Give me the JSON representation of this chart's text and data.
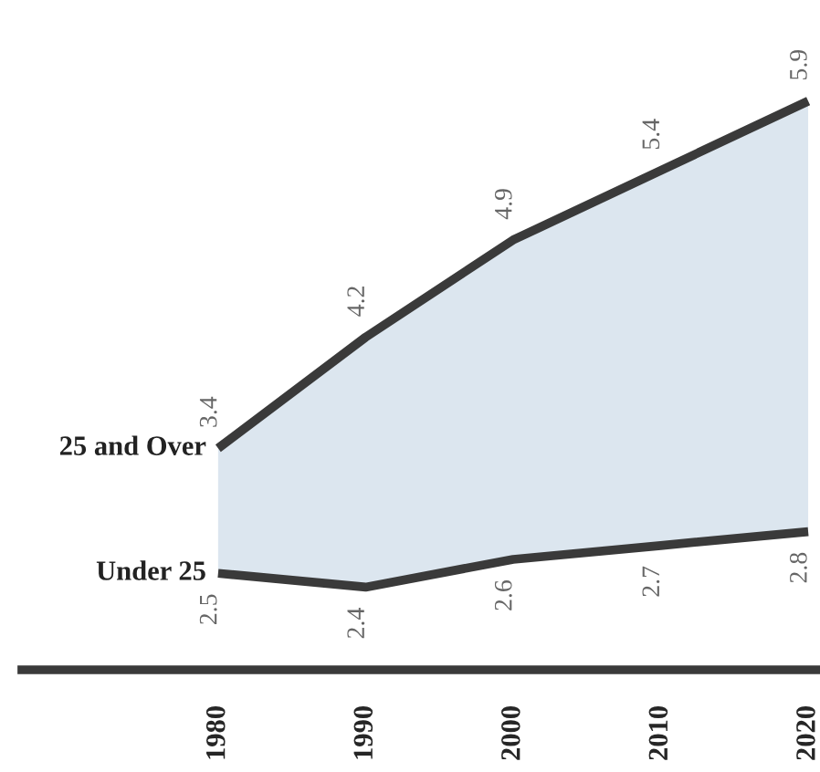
{
  "chart_data": {
    "type": "line",
    "categories": [
      "1980",
      "1990",
      "2000",
      "2010",
      "2020"
    ],
    "series": [
      {
        "name": "25 and Over",
        "color": "#3a3a3a",
        "values": [
          3.4,
          4.2,
          4.9,
          5.4,
          5.9
        ],
        "lower": [
          2.5,
          2.4,
          2.6,
          2.7,
          2.8
        ],
        "upper": [
          3.4,
          4.2,
          4.9,
          5.4,
          5.9
        ]
      },
      {
        "name": "Under 25",
        "color": "#3a3a3a",
        "values": [
          2.5,
          2.4,
          2.6,
          2.7,
          2.8
        ]
      }
    ],
    "data_labels": true,
    "grid": false
  }
}
